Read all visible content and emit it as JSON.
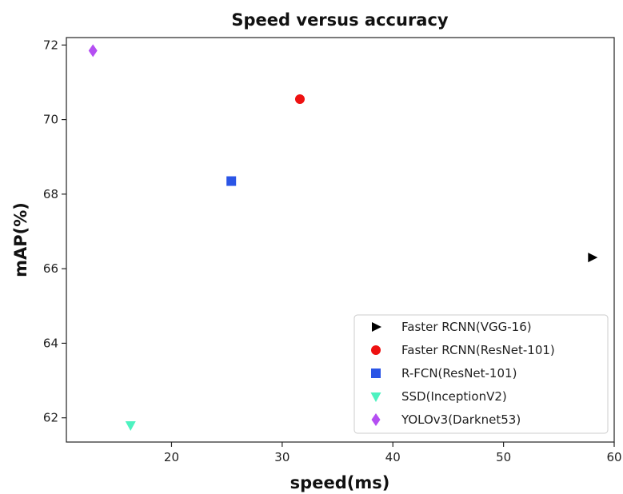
{
  "chart_data": {
    "type": "scatter",
    "title": "Speed versus accuracy",
    "xlabel": "speed(ms)",
    "ylabel": "mAP(%)",
    "xlim": [
      10.5,
      60
    ],
    "ylim": [
      61.35,
      72.2
    ],
    "xticks": [
      20,
      30,
      40,
      50,
      60
    ],
    "yticks": [
      62,
      64,
      66,
      68,
      70,
      72
    ],
    "legend_position": "lower-right",
    "grid": false,
    "series": [
      {
        "name": "Faster RCNN(VGG-16)",
        "marker": "triangle-right",
        "color": "#000000",
        "x": 58.0,
        "y": 66.3
      },
      {
        "name": "Faster RCNN(ResNet-101)",
        "marker": "circle",
        "color": "#ee1111",
        "x": 31.6,
        "y": 70.55
      },
      {
        "name": "R-FCN(ResNet-101)",
        "marker": "square",
        "color": "#2b55e6",
        "x": 25.4,
        "y": 68.35
      },
      {
        "name": "SSD(InceptionV2)",
        "marker": "triangle-down",
        "color": "#4df2c0",
        "x": 16.3,
        "y": 61.8
      },
      {
        "name": "YOLOv3(Darknet53)",
        "marker": "diamond",
        "color": "#b44ef2",
        "x": 12.9,
        "y": 71.85
      }
    ]
  }
}
